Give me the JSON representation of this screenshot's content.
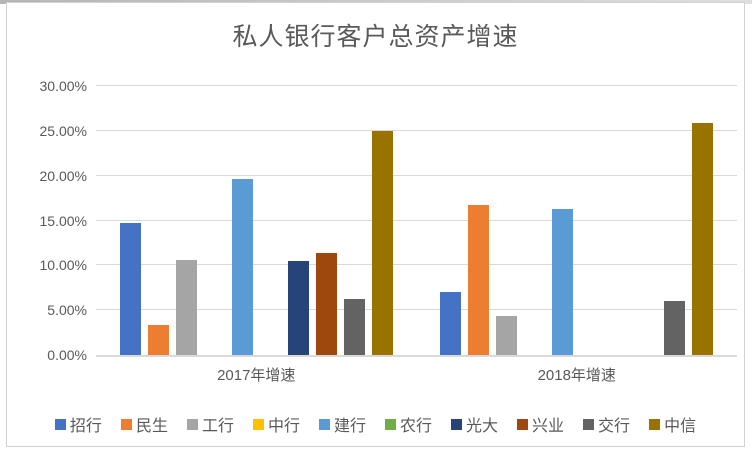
{
  "chart_data": {
    "type": "bar",
    "title": "私人银行客户总资产增速",
    "categories": [
      "2017年增速",
      "2018年增速"
    ],
    "series": [
      {
        "name": "招行",
        "color": "#4472C4",
        "values": [
          14.7,
          7.0
        ]
      },
      {
        "name": "民生",
        "color": "#ED7D31",
        "values": [
          3.4,
          16.7
        ]
      },
      {
        "name": "工行",
        "color": "#A5A5A5",
        "values": [
          10.6,
          4.3
        ]
      },
      {
        "name": "中行",
        "color": "#FFC000",
        "values": [
          null,
          null
        ]
      },
      {
        "name": "建行",
        "color": "#5B9BD5",
        "values": [
          19.6,
          16.3
        ]
      },
      {
        "name": "农行",
        "color": "#70AD47",
        "values": [
          null,
          null
        ]
      },
      {
        "name": "光大",
        "color": "#264478",
        "values": [
          10.5,
          null
        ]
      },
      {
        "name": "兴业",
        "color": "#9E480E",
        "values": [
          11.4,
          null
        ]
      },
      {
        "name": "交行",
        "color": "#636363",
        "values": [
          6.3,
          6.0
        ]
      },
      {
        "name": "中信",
        "color": "#997300",
        "values": [
          25.0,
          25.9
        ]
      }
    ],
    "xlabel": "",
    "ylabel": "",
    "ylim": [
      0,
      30
    ],
    "yticks": [
      {
        "value": 0,
        "label": "0.00%"
      },
      {
        "value": 5,
        "label": "5.00%"
      },
      {
        "value": 10,
        "label": "10.00%"
      },
      {
        "value": 15,
        "label": "15.00%"
      },
      {
        "value": 20,
        "label": "20.00%"
      },
      {
        "value": 25,
        "label": "25.00%"
      },
      {
        "value": 30,
        "label": "30.00%"
      }
    ],
    "grid": true,
    "legend_position": "bottom",
    "colors": {
      "text": "#595959",
      "gridline": "#d9d9d9",
      "background": "#ffffff",
      "border": "#d2d2d2"
    }
  }
}
